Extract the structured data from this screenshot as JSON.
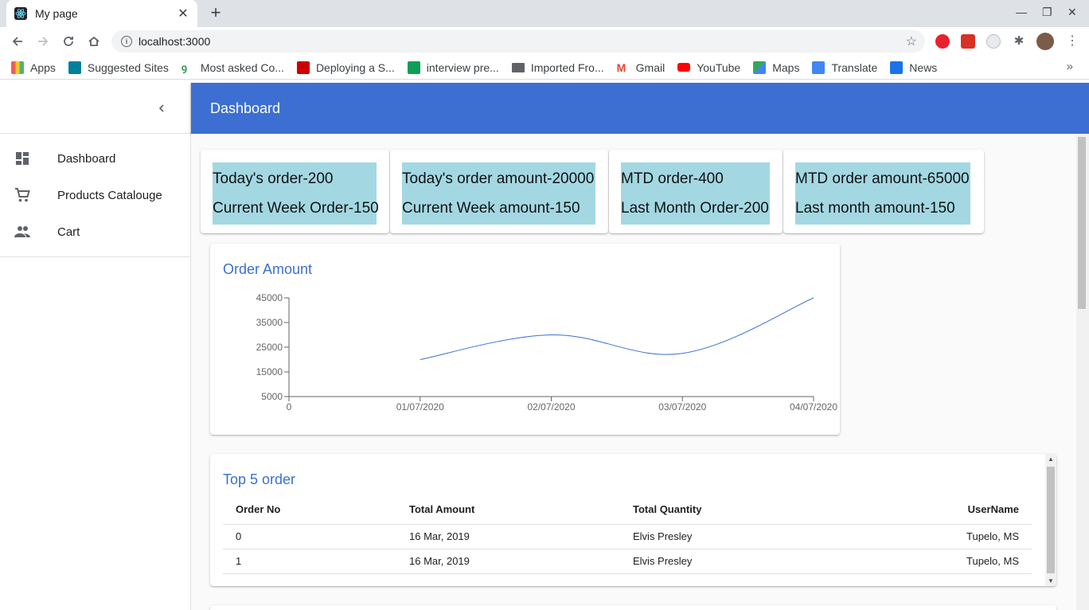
{
  "browser": {
    "tab_title": "My page",
    "url": "localhost:3000",
    "bookmarks": [
      {
        "label": "Apps",
        "color": "#e8453c"
      },
      {
        "label": "Suggested Sites",
        "color": "#00809d"
      },
      {
        "label": "Most asked Co...",
        "color": "#2f8d46"
      },
      {
        "label": "Deploying a S...",
        "color": "#cc0000"
      },
      {
        "label": "interview pre...",
        "color": "#0f9d58"
      },
      {
        "label": "Imported Fro...",
        "color": "#5f6368"
      },
      {
        "label": "Gmail",
        "color": "#ea4335"
      },
      {
        "label": "YouTube",
        "color": "#ff0000"
      },
      {
        "label": "Maps",
        "color": "#34a853"
      },
      {
        "label": "Translate",
        "color": "#4285f4"
      },
      {
        "label": "News",
        "color": "#1a73e8"
      }
    ]
  },
  "sidebar": {
    "items": [
      {
        "label": "Dashboard",
        "icon": "dashboard-icon"
      },
      {
        "label": "Products Catalouge",
        "icon": "shopping-cart-icon"
      },
      {
        "label": "Cart",
        "icon": "people-icon"
      }
    ]
  },
  "appbar": {
    "title": "Dashboard"
  },
  "stats": [
    {
      "line1": "Today's order-200",
      "line2": "Current Week Order-150"
    },
    {
      "line1": "Today's order amount-20000",
      "line2": "Current Week amount-150"
    },
    {
      "line1": "MTD order-400",
      "line2": "Last Month Order-200"
    },
    {
      "line1": "MTD order amount-65000",
      "line2": "Last month amount-150"
    }
  ],
  "order_amount": {
    "title": "Order Amount",
    "chart_data": {
      "type": "line",
      "x": [
        "0",
        "01/07/2020",
        "02/07/2020",
        "03/07/2020",
        "04/07/2020"
      ],
      "points": [
        {
          "x": "01/07/2020",
          "y": 20000
        },
        {
          "x": "02/07/2020",
          "y": 30000
        },
        {
          "x": "03/07/2020",
          "y": 22500
        },
        {
          "x": "04/07/2020",
          "y": 45000
        }
      ],
      "y_ticks": [
        5000,
        15000,
        25000,
        35000,
        45000
      ],
      "ylim": [
        5000,
        45000
      ],
      "color": "#3c6fd1"
    }
  },
  "top_orders": {
    "title": "Top 5 order",
    "columns": [
      "Order No",
      "Total Amount",
      "Total Quantity",
      "UserName"
    ],
    "rows": [
      [
        "0",
        "16 Mar, 2019",
        "Elvis Presley",
        "Tupelo, MS"
      ],
      [
        "1",
        "16 Mar, 2019",
        "Elvis Presley",
        "Tupelo, MS"
      ]
    ]
  }
}
